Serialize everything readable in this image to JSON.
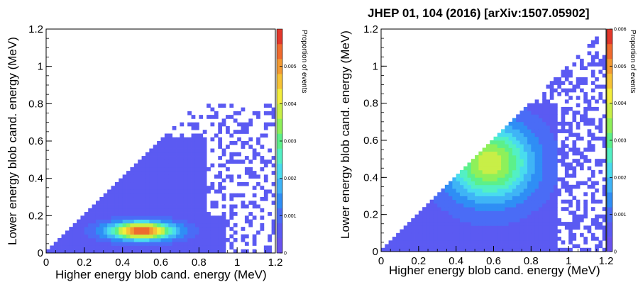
{
  "header": {
    "citation": "JHEP 01, 104 (2016) [arXiv:1507.05902]"
  },
  "chart_data": [
    {
      "type": "heatmap",
      "name": "left-panel",
      "xlabel": "Higher energy blob cand. energy (MeV)",
      "ylabel": "Lower energy blob cand. energy (MeV)",
      "zlabel": "Proportion of events",
      "xlim": [
        0,
        1.2
      ],
      "ylim": [
        0,
        1.2
      ],
      "zlim": [
        0,
        0.006
      ],
      "xticks": [
        "0",
        "0.2",
        "0.4",
        "0.6",
        "0.8",
        "1",
        "1.2"
      ],
      "yticks": [
        "0",
        "0.2",
        "0.4",
        "0.6",
        "0.8",
        "1",
        "1.2"
      ],
      "zticks": [
        "0",
        "0.001",
        "0.002",
        "0.003",
        "0.004",
        "0.005"
      ],
      "bin_width": 0.02,
      "description_of_shape": "Triangular population below the diagonal y=x; dense peak near x≈0.5, y≈0.12 reaching ≈0.0055; sparse scattered bins up to x≈1.2, y≈0.75",
      "peak": {
        "x": 0.5,
        "y": 0.12,
        "z": 0.0055
      },
      "support": {
        "x_max": 1.2,
        "y_max_sparse": 0.8
      }
    },
    {
      "type": "heatmap",
      "name": "right-panel",
      "xlabel": "Higher energy blob cand. energy (MeV)",
      "ylabel": "Lower energy blob cand. energy (MeV)",
      "zlabel": "Proportion of events",
      "xlim": [
        0,
        1.2
      ],
      "ylim": [
        0,
        1.2
      ],
      "zlim": [
        0,
        0.006
      ],
      "xticks": [
        "0",
        "0.2",
        "0.4",
        "0.6",
        "0.8",
        "1",
        "1.2"
      ],
      "yticks": [
        "0",
        "0.2",
        "0.4",
        "0.6",
        "0.8",
        "1",
        "1.2"
      ],
      "zticks": [
        "0",
        "0.001",
        "0.002",
        "0.003",
        "0.004",
        "0.005",
        "0.006"
      ],
      "bin_width": 0.02,
      "description_of_shape": "Triangular population below the diagonal y=x; broad blob centred near x≈0.58, y≈0.48 reaching ≈0.0035; sparse bins extend along diagonal to x≈1.2, y≈1.2",
      "peak": {
        "x": 0.58,
        "y": 0.48,
        "z": 0.0035
      },
      "support": {
        "x_max": 1.2,
        "y_max_sparse": 1.2
      }
    }
  ],
  "palette": [
    "#ffffff",
    "#6a52ee",
    "#5b5af2",
    "#4a6cf6",
    "#2f8ef5",
    "#3fb4f6",
    "#49dcee",
    "#53f0c4",
    "#5cf08a",
    "#8ef05a",
    "#c8ef47",
    "#f3ed3d",
    "#f6c336",
    "#f39a32",
    "#ef6a2e",
    "#e2372b"
  ]
}
